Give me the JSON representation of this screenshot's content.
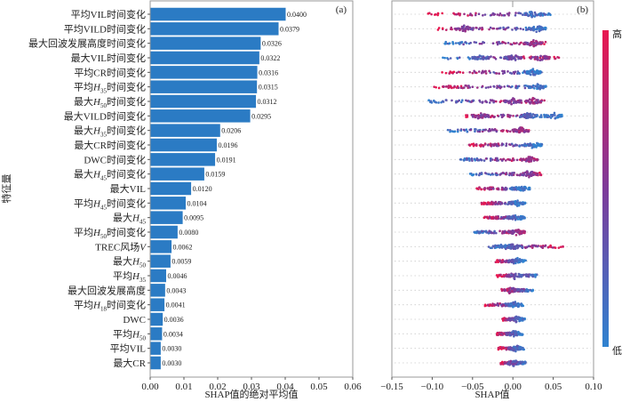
{
  "chart_data": [
    {
      "type": "bar",
      "orientation": "horizontal",
      "panel_label": "(a)",
      "xlabel": "SHAP值的绝对平均值",
      "ylabel": "特征量",
      "xlim": [
        0,
        0.06
      ],
      "xticks": [
        "0.00",
        "0.01",
        "0.02",
        "0.03",
        "0.04",
        "0.05",
        "0.06"
      ],
      "xtick_values": [
        0,
        0.01,
        0.02,
        0.03,
        0.04,
        0.05,
        0.06
      ],
      "bar_color": "#2b7bc4",
      "categories": [
        {
          "pre": "平均VIL时间变化",
          "sym": "",
          "sub": "",
          "post": ""
        },
        {
          "pre": "平均VILD时间变化",
          "sym": "",
          "sub": "",
          "post": ""
        },
        {
          "pre": "最大回波发展高度时间变化",
          "sym": "",
          "sub": "",
          "post": ""
        },
        {
          "pre": "最大VIL时间变化",
          "sym": "",
          "sub": "",
          "post": ""
        },
        {
          "pre": "平均CR时间变化",
          "sym": "",
          "sub": "",
          "post": ""
        },
        {
          "pre": "平均",
          "sym": "H",
          "sub": "35",
          "post": "时间变化"
        },
        {
          "pre": "最大",
          "sym": "H",
          "sub": "50",
          "post": "时间变化"
        },
        {
          "pre": "最大VILD时间变化",
          "sym": "",
          "sub": "",
          "post": ""
        },
        {
          "pre": "最大",
          "sym": "H",
          "sub": "35",
          "post": "时间变化"
        },
        {
          "pre": "最大CR时间变化",
          "sym": "",
          "sub": "",
          "post": ""
        },
        {
          "pre": "DWC时间变化",
          "sym": "",
          "sub": "",
          "post": ""
        },
        {
          "pre": "最大",
          "sym": "H",
          "sub": "45",
          "post": "时间变化"
        },
        {
          "pre": "最大VIL",
          "sym": "",
          "sub": "",
          "post": ""
        },
        {
          "pre": "平均",
          "sym": "H",
          "sub": "45",
          "post": "时间变化"
        },
        {
          "pre": "最大",
          "sym": "H",
          "sub": "45",
          "post": ""
        },
        {
          "pre": "平均",
          "sym": "H",
          "sub": "50",
          "post": "时间变化"
        },
        {
          "pre": "TREC风场",
          "sym": "V",
          "sub": "",
          "post": ""
        },
        {
          "pre": "最大",
          "sym": "H",
          "sub": "50",
          "post": ""
        },
        {
          "pre": "平均",
          "sym": "H",
          "sub": "35",
          "post": ""
        },
        {
          "pre": "最大回波发展高度",
          "sym": "",
          "sub": "",
          "post": ""
        },
        {
          "pre": "平均",
          "sym": "H",
          "sub": "18",
          "post": "时间变化"
        },
        {
          "pre": "DWC",
          "sym": "",
          "sub": "",
          "post": ""
        },
        {
          "pre": "平均",
          "sym": "H",
          "sub": "50",
          "post": ""
        },
        {
          "pre": "平均VIL",
          "sym": "",
          "sub": "",
          "post": ""
        },
        {
          "pre": "最大CR",
          "sym": "",
          "sub": "",
          "post": ""
        }
      ],
      "values": [
        0.04,
        0.0379,
        0.0326,
        0.0322,
        0.0316,
        0.0315,
        0.0312,
        0.0295,
        0.0206,
        0.0196,
        0.0191,
        0.0159,
        0.012,
        0.0104,
        0.0095,
        0.008,
        0.0062,
        0.0059,
        0.0046,
        0.0043,
        0.0041,
        0.0036,
        0.0034,
        0.003,
        0.003
      ],
      "value_labels": [
        "0.0400",
        "0.0379",
        "0.0326",
        "0.0322",
        "0.0316",
        "0.0315",
        "0.0312",
        "0.0295",
        "0.0206",
        "0.0196",
        "0.0191",
        "0.0159",
        "0.0120",
        "0.0104",
        "0.0095",
        "0.0080",
        "0.0062",
        "0.0059",
        "0.0046",
        "0.0043",
        "0.0041",
        "0.0036",
        "0.0034",
        "0.0030",
        "0.0030"
      ]
    },
    {
      "type": "scatter",
      "subtype": "beeswarm",
      "panel_label": "(b)",
      "xlabel": "SHAP值",
      "xlim": [
        -0.15,
        0.1
      ],
      "xticks": [
        "−0.15",
        "−0.10",
        "−0.05",
        "0.00",
        "0.05",
        "0.10"
      ],
      "xtick_values": [
        -0.15,
        -0.1,
        -0.05,
        0.0,
        0.05,
        0.1
      ],
      "colorbar": {
        "high_label": "高",
        "low_label": "低",
        "high_color": "#e8174f",
        "mid_color": "#7e3a9a",
        "low_color": "#2f82d0"
      },
      "rows": [
        {
          "min": -0.105,
          "max": 0.053,
          "modes": [
            0.025
          ],
          "low_side": "right"
        },
        {
          "min": -0.093,
          "max": 0.043,
          "modes": [
            0.03,
            -0.06
          ],
          "low_side": "right"
        },
        {
          "min": -0.085,
          "max": 0.043,
          "modes": [
            0.025
          ],
          "low_side": "left"
        },
        {
          "min": -0.087,
          "max": 0.058,
          "modes": [
            0.0,
            0.035,
            -0.04
          ],
          "low_side": "left"
        },
        {
          "min": -0.088,
          "max": 0.037,
          "modes": [
            0.025
          ],
          "low_side": "right"
        },
        {
          "min": -0.098,
          "max": 0.042,
          "modes": [
            0.03
          ],
          "low_side": "right"
        },
        {
          "min": -0.11,
          "max": 0.04,
          "modes": [
            0.025,
            0.0
          ],
          "low_side": "left"
        },
        {
          "min": -0.06,
          "max": 0.06,
          "modes": [
            -0.04,
            0.02,
            0.05
          ],
          "low_side": "right"
        },
        {
          "min": -0.083,
          "max": 0.02,
          "modes": [
            0.01
          ],
          "low_side": "left"
        },
        {
          "min": -0.055,
          "max": 0.03,
          "modes": [
            0.025
          ],
          "low_side": "right"
        },
        {
          "min": -0.065,
          "max": 0.025,
          "modes": [
            0.02
          ],
          "low_side": "left"
        },
        {
          "min": -0.053,
          "max": 0.035,
          "modes": [
            0.02
          ],
          "low_side": "left"
        },
        {
          "min": -0.045,
          "max": 0.015,
          "modes": [
            0.01
          ],
          "low_side": "right"
        },
        {
          "min": -0.04,
          "max": 0.008,
          "modes": [
            0.005
          ],
          "low_side": "right"
        },
        {
          "min": -0.037,
          "max": 0.012,
          "modes": [
            0.005
          ],
          "low_side": "right"
        },
        {
          "min": -0.048,
          "max": 0.013,
          "modes": [
            0.005
          ],
          "low_side": "left"
        },
        {
          "min": -0.03,
          "max": 0.065,
          "modes": [
            -0.01,
            0.0
          ],
          "low_side": "left"
        },
        {
          "min": -0.022,
          "max": 0.01,
          "modes": [
            0.005
          ],
          "low_side": "right"
        },
        {
          "min": -0.02,
          "max": 0.03,
          "modes": [
            0.002
          ],
          "low_side": "right"
        },
        {
          "min": -0.008,
          "max": 0.025,
          "modes": [
            -0.003
          ],
          "low_side": "right"
        },
        {
          "min": -0.035,
          "max": 0.008,
          "modes": [
            0.002
          ],
          "low_side": "right"
        },
        {
          "min": -0.013,
          "max": 0.015,
          "modes": [
            0.003
          ],
          "low_side": "right"
        },
        {
          "min": -0.02,
          "max": 0.008,
          "modes": [
            0.002
          ],
          "low_side": "right"
        },
        {
          "min": -0.018,
          "max": 0.01,
          "modes": [
            0.003
          ],
          "low_side": "right"
        },
        {
          "min": -0.015,
          "max": 0.016,
          "modes": [
            0.0
          ],
          "low_side": "right"
        }
      ]
    }
  ]
}
